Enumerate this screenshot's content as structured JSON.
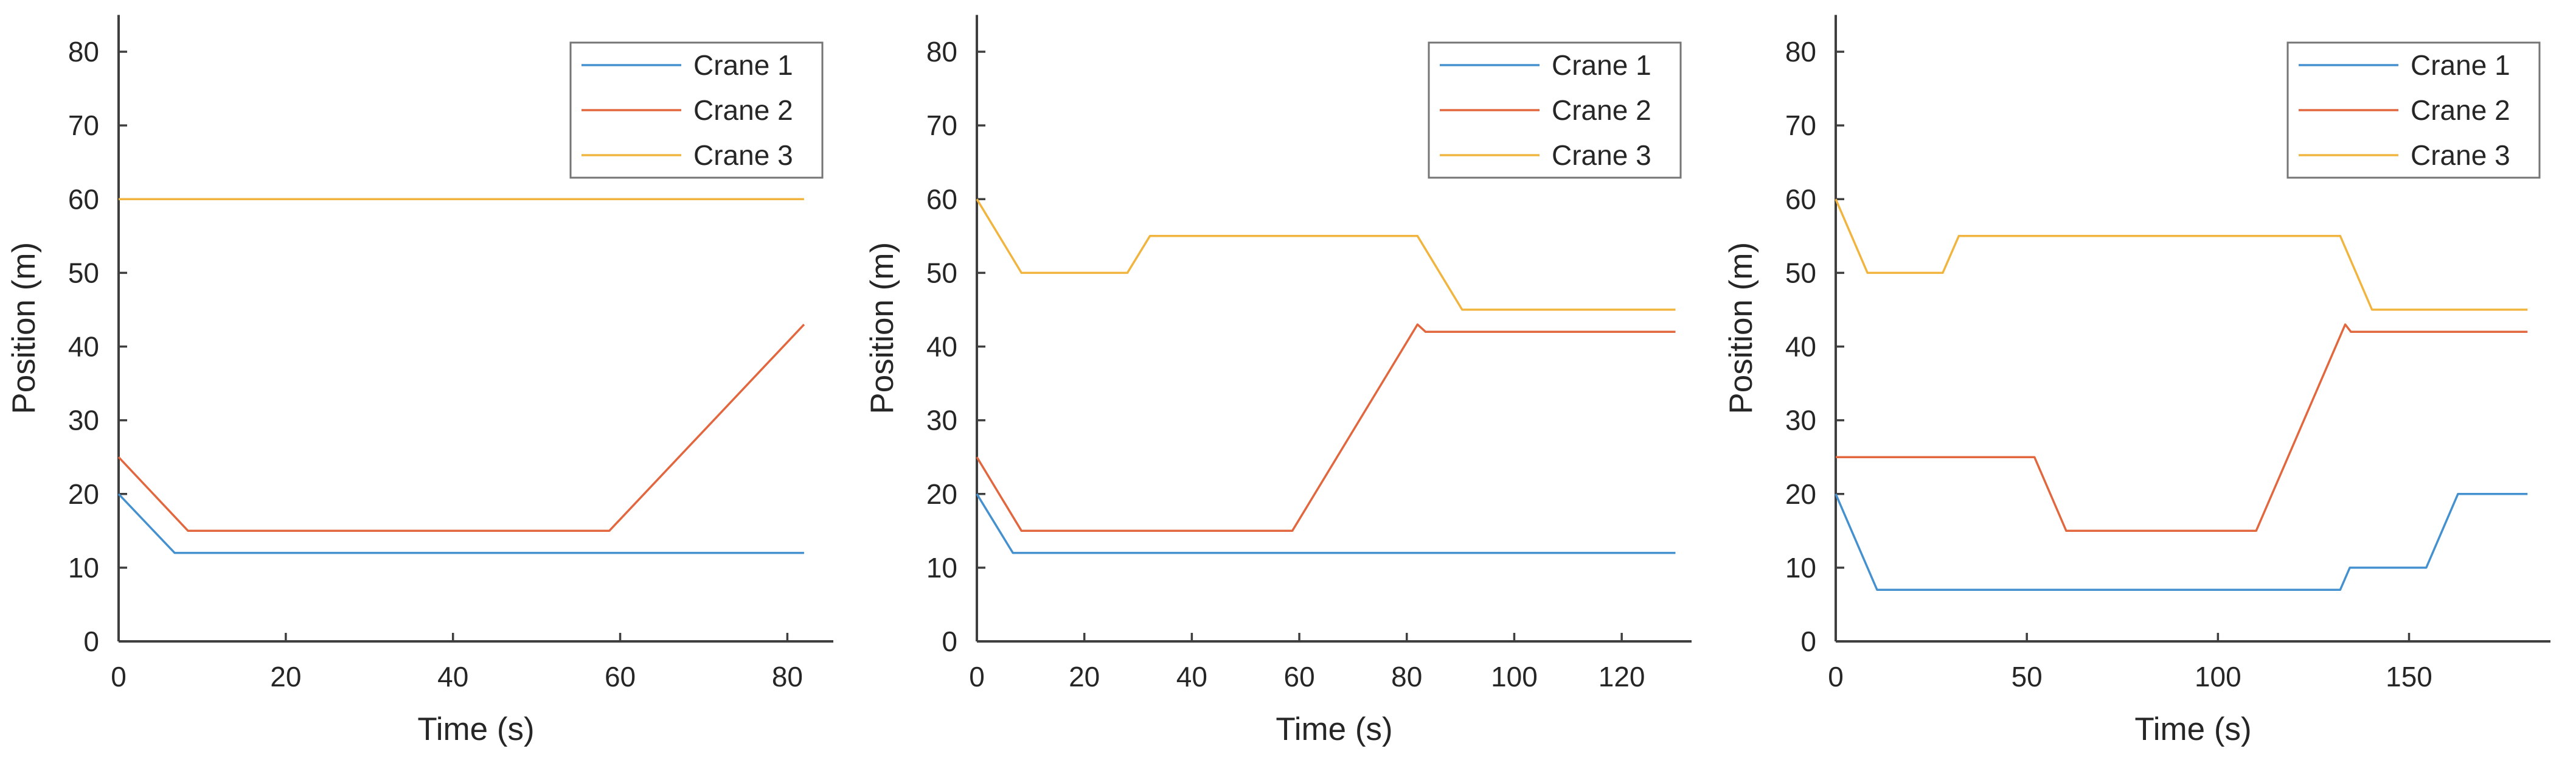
{
  "figure": {
    "background": "#ffffff",
    "text_color": "#262626",
    "axis_color": "#3f3f3f",
    "legend_border_color": "#757575",
    "series_colors": {
      "crane1": "#4591D0",
      "crane2": "#E2673E",
      "crane3": "#F1B53F"
    },
    "legend_labels": [
      "Crane 1",
      "Crane 2",
      "Crane 3"
    ],
    "xlabel": "Time (s)",
    "ylabel": "Position (m)"
  },
  "chart_data": [
    {
      "type": "line",
      "title": "",
      "xlabel": "Time (s)",
      "ylabel": "Position (m)",
      "xlim": [
        0,
        85.5
      ],
      "ylim": [
        0,
        85
      ],
      "xticks": [
        0,
        20,
        40,
        60,
        80
      ],
      "yticks": [
        0,
        10,
        20,
        30,
        40,
        50,
        60,
        70,
        80
      ],
      "grid": false,
      "legend_position": "top-right",
      "series": [
        {
          "name": "Crane 1",
          "color": "#4591D0",
          "points": [
            [
              0,
              20
            ],
            [
              6.7,
              12
            ],
            [
              82,
              12
            ]
          ]
        },
        {
          "name": "Crane 2",
          "color": "#E2673E",
          "points": [
            [
              0,
              25
            ],
            [
              8.3,
              15
            ],
            [
              58.7,
              15
            ],
            [
              82,
              43
            ]
          ]
        },
        {
          "name": "Crane 3",
          "color": "#F1B53F",
          "points": [
            [
              0,
              60
            ],
            [
              82,
              60
            ]
          ]
        }
      ]
    },
    {
      "type": "line",
      "title": "",
      "xlabel": "Time (s)",
      "ylabel": "Position (m)",
      "xlim": [
        0,
        133
      ],
      "ylim": [
        0,
        85
      ],
      "xticks": [
        0,
        20,
        40,
        60,
        80,
        100,
        120
      ],
      "yticks": [
        0,
        10,
        20,
        30,
        40,
        50,
        60,
        70,
        80
      ],
      "grid": false,
      "legend_position": "top-right",
      "series": [
        {
          "name": "Crane 1",
          "color": "#4591D0",
          "points": [
            [
              0,
              20
            ],
            [
              6.7,
              12
            ],
            [
              130,
              12
            ]
          ]
        },
        {
          "name": "Crane 2",
          "color": "#E2673E",
          "points": [
            [
              0,
              25
            ],
            [
              8.3,
              15
            ],
            [
              58.7,
              15
            ],
            [
              82,
              43
            ],
            [
              83.5,
              42
            ],
            [
              130,
              42
            ]
          ]
        },
        {
          "name": "Crane 3",
          "color": "#F1B53F",
          "points": [
            [
              0,
              60
            ],
            [
              8.3,
              50
            ],
            [
              28,
              50
            ],
            [
              32.2,
              55
            ],
            [
              82,
              55
            ],
            [
              90.3,
              45
            ],
            [
              130,
              45
            ]
          ]
        }
      ]
    },
    {
      "type": "line",
      "title": "",
      "xlabel": "Time (s)",
      "ylabel": "Position (m)",
      "xlim": [
        0,
        187
      ],
      "ylim": [
        0,
        85
      ],
      "xticks": [
        0,
        50,
        100,
        150
      ],
      "yticks": [
        0,
        10,
        20,
        30,
        40,
        50,
        60,
        70,
        80
      ],
      "grid": false,
      "legend_position": "top-right",
      "series": [
        {
          "name": "Crane 1",
          "color": "#4591D0",
          "points": [
            [
              0,
              20
            ],
            [
              10.8,
              7
            ],
            [
              132,
              7
            ],
            [
              134.5,
              10
            ],
            [
              154.5,
              10
            ],
            [
              162.8,
              20
            ],
            [
              181,
              20
            ]
          ]
        },
        {
          "name": "Crane 2",
          "color": "#E2673E",
          "points": [
            [
              0,
              25
            ],
            [
              52,
              25
            ],
            [
              60.3,
              15
            ],
            [
              110,
              15
            ],
            [
              133.3,
              43
            ],
            [
              134.8,
              42
            ],
            [
              181,
              42
            ]
          ]
        },
        {
          "name": "Crane 3",
          "color": "#F1B53F",
          "points": [
            [
              0,
              60
            ],
            [
              8.3,
              50
            ],
            [
              28,
              50
            ],
            [
              32.2,
              55
            ],
            [
              132,
              55
            ],
            [
              140.3,
              45
            ],
            [
              181,
              45
            ]
          ]
        }
      ]
    }
  ]
}
